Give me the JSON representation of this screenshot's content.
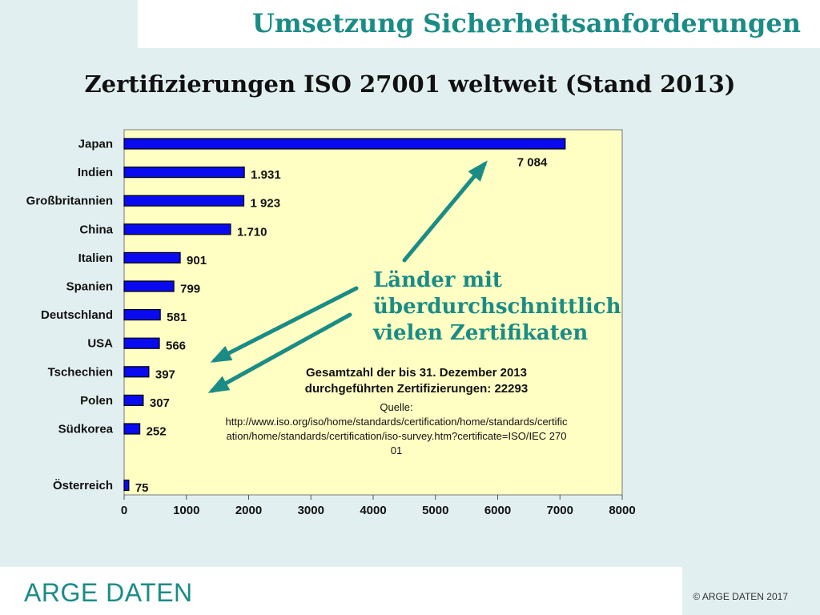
{
  "header": {
    "title": "Umsetzung Sicherheitsanforderungen"
  },
  "chart_data": {
    "type": "bar",
    "orientation": "horizontal",
    "title": "Zertifizierungen ISO 27001 weltweit (Stand 2013)",
    "categories": [
      "Japan",
      "Indien",
      "Großbritannien",
      "China",
      "Italien",
      "Spanien",
      "Deutschland",
      "USA",
      "Tschechien",
      "Polen",
      "Südkorea",
      "Österreich"
    ],
    "values": [
      7084,
      1931,
      1923,
      1710,
      901,
      799,
      581,
      566,
      397,
      307,
      252,
      75
    ],
    "value_labels": [
      "7 084",
      "1.931",
      "1 923",
      "1.710",
      "901",
      "799",
      "581",
      "566",
      "397",
      "307",
      "252",
      "75"
    ],
    "xlim": [
      0,
      8000
    ],
    "xticks": [
      "0",
      "1000",
      "2000",
      "3000",
      "4000",
      "5000",
      "6000",
      "7000",
      "8000"
    ],
    "grid": false,
    "legend": "none",
    "bar_color": "#0a0af0",
    "plot_background": "#ffffc4"
  },
  "callout": {
    "lines": [
      "Länder mit",
      "überdurchschnittlich",
      "vielen Zertifikaten"
    ]
  },
  "total_note": {
    "line1": "Gesamtzahl der bis 31. Dezember 2013",
    "line2": "durchgeführten Zertifizierungen: 22293"
  },
  "source_note": {
    "label": "Quelle:",
    "url": "http://www.iso.org/iso/home/standards/certification/home/standards/certification/home/standards/certification/iso-survey.htm?certificate=ISO/IEC 27001"
  },
  "footer": {
    "logo": "ARGE DATEN",
    "copyright": "© ARGE DATEN 2017"
  },
  "colors": {
    "accent": "#1a8c85",
    "background": "#e2eff1"
  }
}
